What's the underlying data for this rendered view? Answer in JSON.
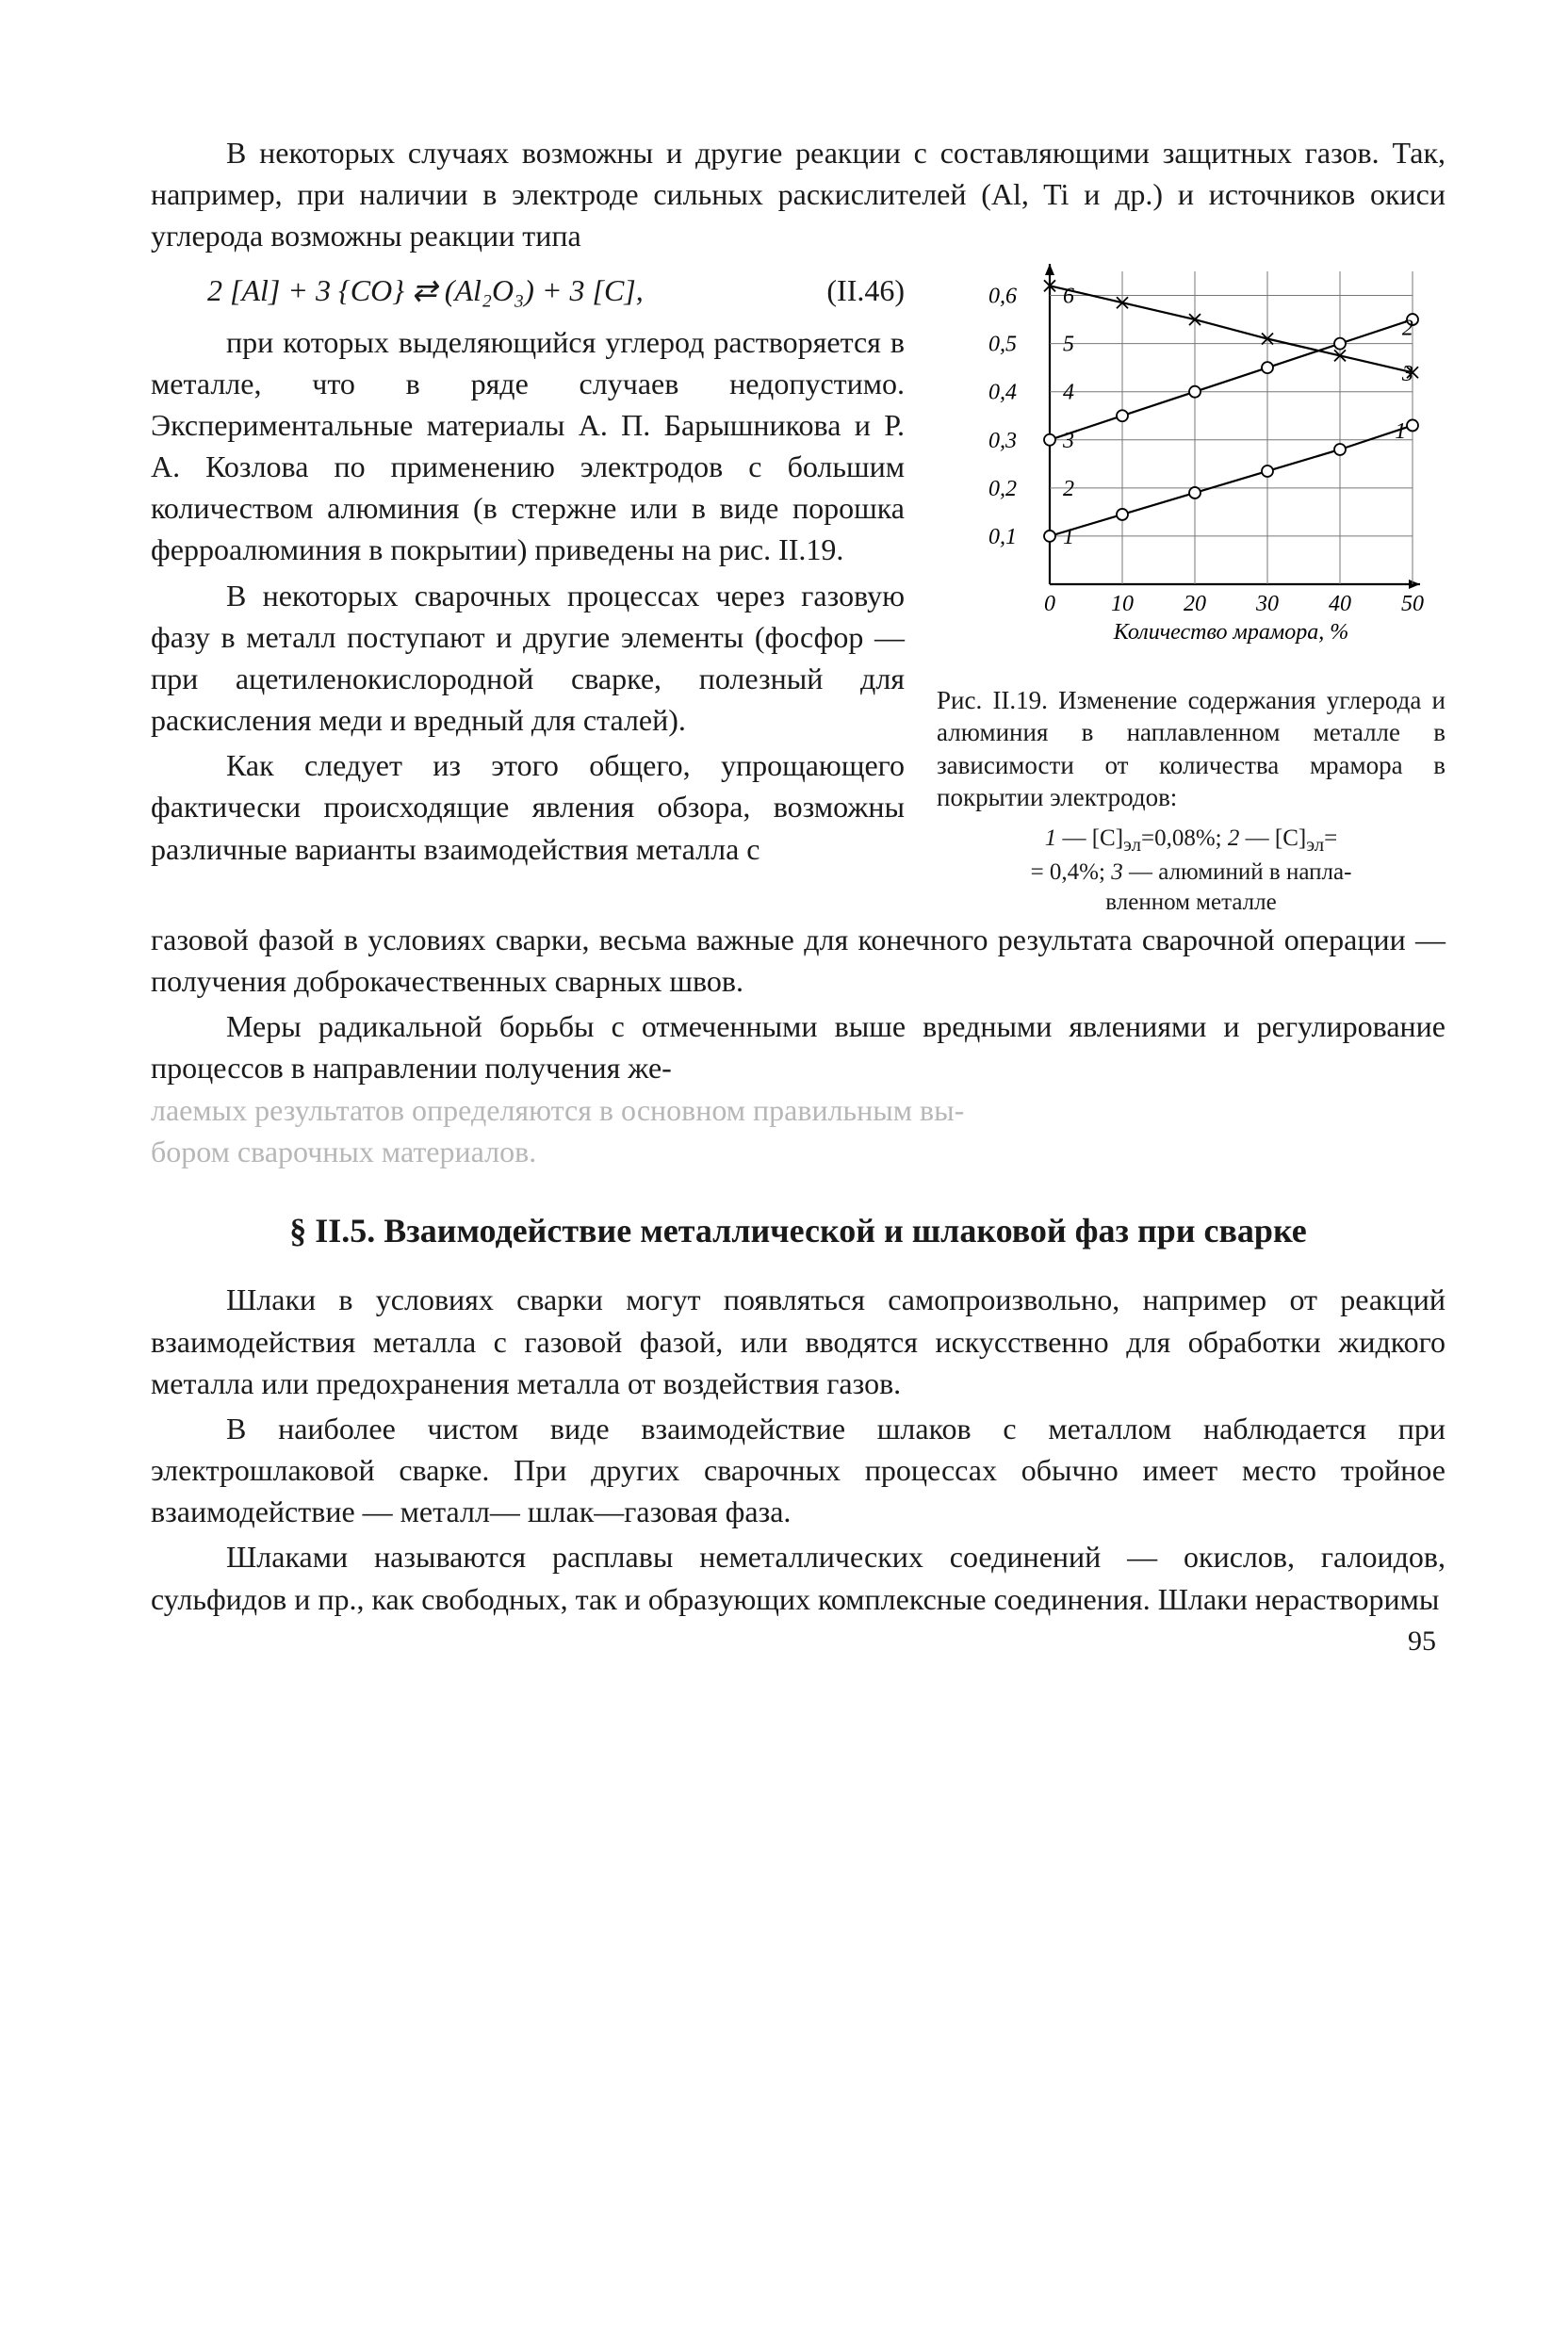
{
  "para1": "В некоторых случаях возможны и другие реакции с составляющими защитных газов. Так, например, при наличии в электроде сильных раскислителей (Al, Ti и др.) и источников окиси углерода возможны реакции типа",
  "equation": {
    "text": "2 [Al] + 3 {CO} ⇄ (Al₂O₃) + 3 [C],",
    "number": "(II.46)"
  },
  "para2": "при которых выделяющийся углерод растворяется в металле, что в ряде случаев недопустимо. Экспериментальные материалы А. П. Барышникова и Р. А. Козлова по применению электродов с большим количеством алюминия (в стержне или в виде порошка ферроалюминия в покрытии) приведены на рис. II.19.",
  "para3": "В некоторых сварочных процессах через газовую фазу в металл поступают и другие элементы (фосфор — при ацетиленокислородной сварке, полезный для раскисления меди и вредный для сталей).",
  "para4": "Как следует из этого общего, упрощающего фактически происходящие явления обзора, возможны различные варианты взаимодействия металла с",
  "para5": "газовой фазой в условиях сварки, весьма важные для конечного результата сварочной операции — получения доброкачественных сварных швов.",
  "para6a": "Меры радикальной борьбы с отмеченными выше вредными явлениями и регулирование процессов в направлении получения же-",
  "para6b": "лаемых результатов определяются в основном правильным вы-",
  "para6c": "бором сварочных материалов.",
  "section_heading": "§ II.5. Взаимодействие металлической и шлаковой фаз при сварке",
  "para7": "Шлаки в условиях сварки могут появляться самопроизвольно, например от реакций взаимодействия металла с газовой фазой, или вводятся искусственно для обработки жидкого металла или предохранения металла от воздействия газов.",
  "para8": "В наиболее чистом виде взаимодействие шлаков с металлом наблюдается при электрошлаковой сварке. При других сварочных процессах обычно имеет место тройное взаимодействие — металл— шлак—газовая фаза.",
  "para9": "Шлаками называются расплавы неметаллических соединений — окислов, галоидов, сульфидов и пр., как свободных, так и образующих комплексные соединения. Шлаки нерастворимы",
  "figure": {
    "caption": "Рис. II.19. Изменение содержания углерода и алюминия в наплавленном металле в зависимости от количества мрамора в покрытии электродов:",
    "legend": "1 — [С]эл=0,08%; 2 — [С]эл= = 0,4%; 3 — алюминий в наплавленном металле",
    "xlabel": "Количество мрамора, %",
    "xlim": [
      0,
      50
    ],
    "xticks": [
      0,
      10,
      20,
      30,
      40,
      50
    ],
    "ylim_left": [
      0,
      0.65
    ],
    "yticks_left": [
      0.1,
      0.2,
      0.3,
      0.4,
      0.5,
      0.6
    ],
    "ylim_right": [
      0,
      6.5
    ],
    "yticks_right": [
      1,
      2,
      3,
      4,
      5,
      6
    ],
    "grid_color": "#777777",
    "axis_color": "#000000",
    "background": "#ffffff",
    "font_size_ticks": 24,
    "font_size_label": 24,
    "line_width": 2.2,
    "marker_size": 6,
    "series": [
      {
        "name": "1",
        "label_x": 46,
        "label_yr": 3.15,
        "marker": "circle",
        "points_x": [
          0,
          10,
          20,
          30,
          40,
          50
        ],
        "points_y_right": [
          1.0,
          1.45,
          1.9,
          2.35,
          2.8,
          3.3
        ]
      },
      {
        "name": "2",
        "label_x": 47,
        "label_yr": 5.3,
        "marker": "circle",
        "points_x": [
          0,
          10,
          20,
          30,
          40,
          50
        ],
        "points_y_right": [
          3.0,
          3.5,
          4.0,
          4.5,
          5.0,
          5.5
        ]
      },
      {
        "name": "3",
        "label_x": 47,
        "label_yr": 4.35,
        "marker": "x",
        "points_x": [
          0,
          10,
          20,
          30,
          40,
          50
        ],
        "points_y_right": [
          6.2,
          5.85,
          5.5,
          5.1,
          4.75,
          4.4
        ]
      }
    ]
  },
  "page_number": "95"
}
